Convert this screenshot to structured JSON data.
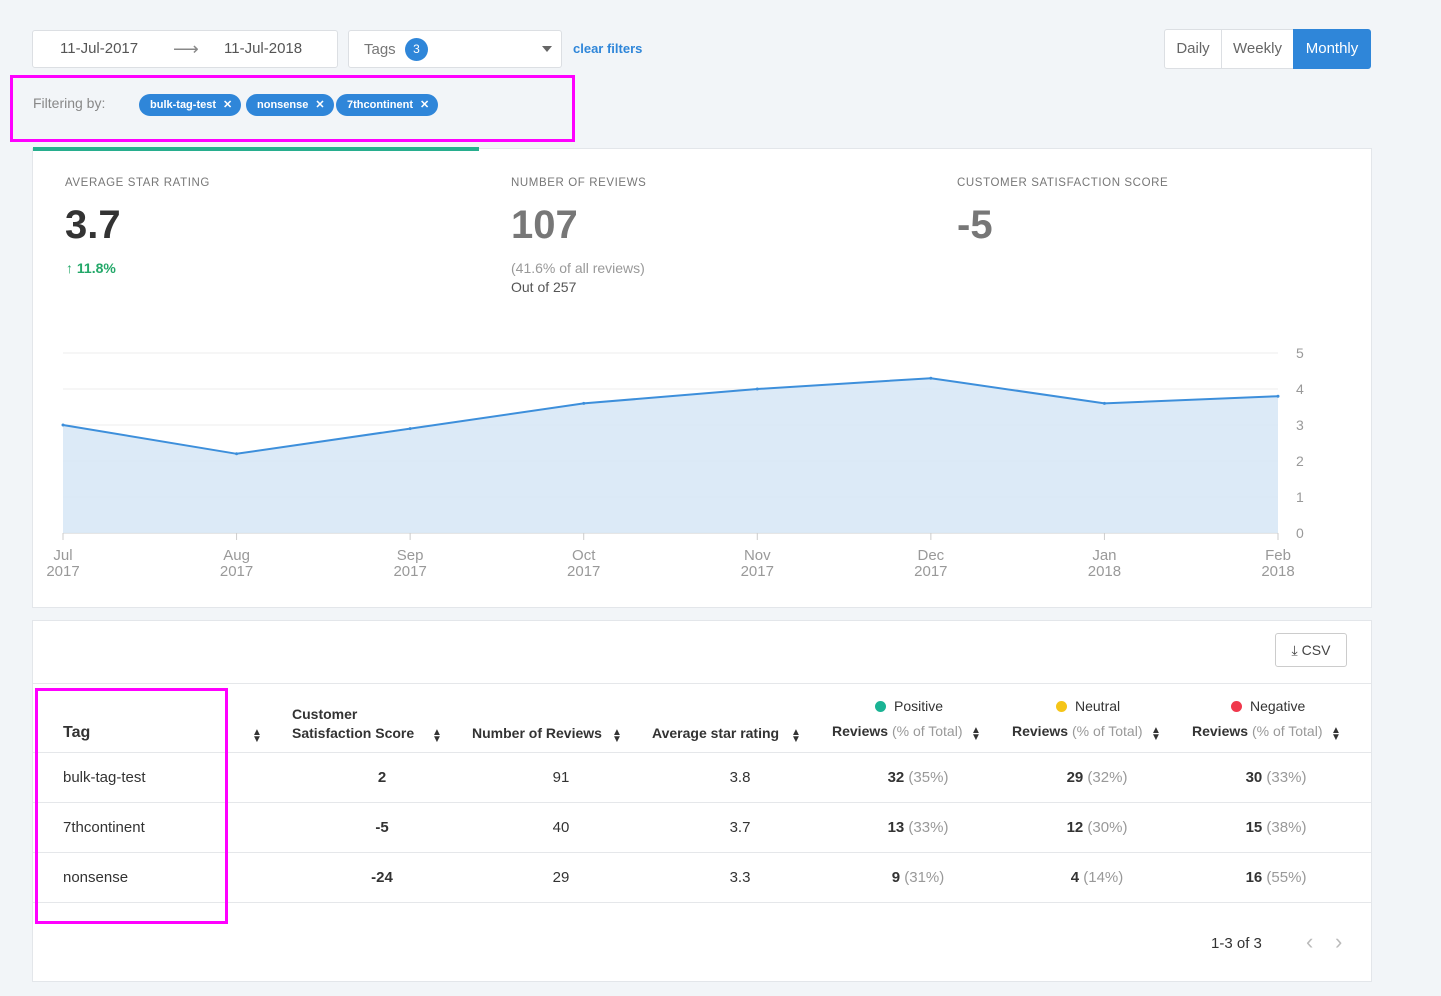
{
  "date_range": {
    "start": "11-Jul-2017",
    "end": "11-Jul-2018"
  },
  "tags_filter": {
    "label": "Tags",
    "count": "3"
  },
  "clear_filters": "clear filters",
  "periods": {
    "daily": "Daily",
    "weekly": "Weekly",
    "monthly": "Monthly",
    "selected": "Monthly"
  },
  "filtering": {
    "label": "Filtering by:",
    "chips": [
      "bulk-tag-test",
      "nonsense",
      "7thcontinent"
    ]
  },
  "stats": {
    "avg_star": {
      "label": "AVERAGE STAR RATING",
      "value": "3.7",
      "trend": "11.8%"
    },
    "num_reviews": {
      "label": "NUMBER OF REVIEWS",
      "value": "107",
      "pct": "(41.6% of all reviews)",
      "total": "Out of 257"
    },
    "csat": {
      "label": "CUSTOMER SATISFACTION SCORE",
      "value": "-5"
    }
  },
  "chart_data": {
    "type": "area",
    "x": [
      "Jul 2017",
      "Aug 2017",
      "Sep 2017",
      "Oct 2017",
      "Nov 2017",
      "Dec 2017",
      "Jan 2018",
      "Feb 2018"
    ],
    "x_month": [
      "Jul",
      "Aug",
      "Sep",
      "Oct",
      "Nov",
      "Dec",
      "Jan",
      "Feb"
    ],
    "x_year": [
      "2017",
      "2017",
      "2017",
      "2017",
      "2017",
      "2017",
      "2018",
      "2018"
    ],
    "values": [
      3.0,
      2.2,
      2.9,
      3.6,
      4.0,
      4.3,
      3.6,
      3.8
    ],
    "ylim": [
      0,
      5
    ],
    "yticks": [
      "0",
      "1",
      "2",
      "3",
      "4",
      "5"
    ],
    "color": "#3d8fdb",
    "fill": "#d8e8f6"
  },
  "table": {
    "csv_label": "CSV",
    "headers": {
      "tag": "Tag",
      "csat_line1": "Customer",
      "csat_line2": "Satisfaction Score",
      "num_reviews": "Number of Reviews",
      "avg_star": "Average star rating",
      "positive": "Positive",
      "neutral": "Neutral",
      "negative": "Negative",
      "reviews": "Reviews",
      "pct_total": "(% of Total)"
    },
    "legend_colors": {
      "positive": "#1ab394",
      "neutral": "#f5c518",
      "negative": "#f0384c"
    },
    "rows": [
      {
        "tag": "bulk-tag-test",
        "csat": "2",
        "num": "91",
        "avg": "3.8",
        "pos": "32",
        "pos_pct": "(35%)",
        "neu": "29",
        "neu_pct": "(32%)",
        "neg": "30",
        "neg_pct": "(33%)"
      },
      {
        "tag": "7thcontinent",
        "csat": "-5",
        "num": "40",
        "avg": "3.7",
        "pos": "13",
        "pos_pct": "(33%)",
        "neu": "12",
        "neu_pct": "(30%)",
        "neg": "15",
        "neg_pct": "(38%)"
      },
      {
        "tag": "nonsense",
        "csat": "-24",
        "num": "29",
        "avg": "3.3",
        "pos": "9",
        "pos_pct": "(31%)",
        "neu": "4",
        "neu_pct": "(14%)",
        "neg": "16",
        "neg_pct": "(55%)"
      }
    ],
    "pager": "1-3 of 3"
  }
}
